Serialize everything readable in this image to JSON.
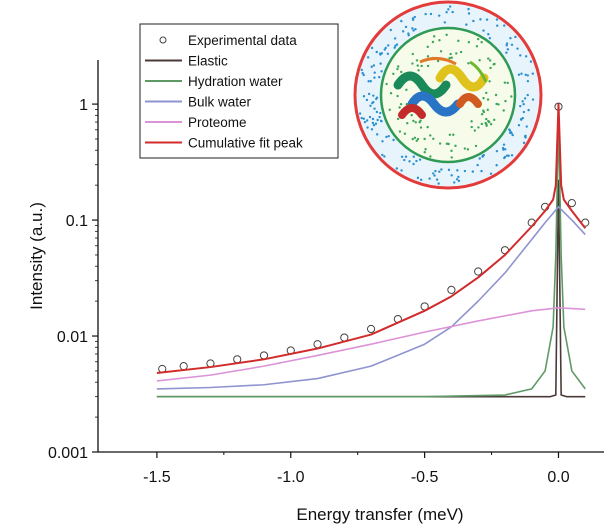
{
  "chart_data": {
    "type": "line",
    "xlabel": "Energy transfer (meV)",
    "ylabel": "Intensity (a.u.)",
    "xlim": [
      -1.72,
      0.17
    ],
    "ylim": [
      0.001,
      2.4
    ],
    "y_scale": "log",
    "x_ticks": [
      -1.5,
      -1.0,
      -0.5,
      0.0
    ],
    "x_tick_labels": [
      "-1.5",
      "-1.0",
      "-0.5",
      "0.0"
    ],
    "y_ticks": [
      0.001,
      0.01,
      0.1,
      1
    ],
    "y_tick_labels": [
      "0.001",
      "0.01",
      "0.1",
      "1"
    ],
    "grid": false,
    "legend_position": "top-left",
    "legend": [
      "Experimental data",
      "Elastic",
      "Hydration water",
      "Bulk water",
      "Proteome",
      "Cumulative fit peak"
    ],
    "colors": {
      "experimental": "#444444",
      "elastic": "#4a3b38",
      "hydration": "#5f9a66",
      "bulk": "#8f93d0",
      "proteome": "#dc93d8",
      "cumulative": "#d12b2b"
    },
    "series": [
      {
        "name": "Experimental data",
        "style": "open-circles",
        "x": [
          -1.48,
          -1.4,
          -1.3,
          -1.2,
          -1.1,
          -1.0,
          -0.9,
          -0.8,
          -0.7,
          -0.6,
          -0.5,
          -0.4,
          -0.3,
          -0.2,
          -0.1,
          -0.05,
          0.0,
          0.05,
          0.1
        ],
        "y": [
          0.0052,
          0.0055,
          0.0058,
          0.0063,
          0.0068,
          0.0075,
          0.0085,
          0.0097,
          0.0115,
          0.014,
          0.018,
          0.025,
          0.036,
          0.055,
          0.095,
          0.13,
          0.95,
          0.14,
          0.095
        ]
      },
      {
        "name": "Elastic",
        "x": [
          -1.5,
          -0.1,
          -0.03,
          -0.01,
          0.0,
          0.01,
          0.03,
          0.1
        ],
        "y": [
          0.003,
          0.003,
          0.003,
          0.0031,
          0.22,
          0.0031,
          0.003,
          0.003
        ]
      },
      {
        "name": "Hydration water",
        "x": [
          -1.5,
          -0.5,
          -0.2,
          -0.1,
          -0.05,
          -0.02,
          -0.01,
          0.0,
          0.01,
          0.02,
          0.05,
          0.1
        ],
        "y": [
          0.003,
          0.003,
          0.0031,
          0.0035,
          0.005,
          0.012,
          0.05,
          0.72,
          0.05,
          0.012,
          0.005,
          0.0035
        ]
      },
      {
        "name": "Bulk water",
        "x": [
          -1.5,
          -1.3,
          -1.1,
          -0.9,
          -0.7,
          -0.5,
          -0.4,
          -0.3,
          -0.2,
          -0.1,
          -0.05,
          0.0,
          0.05,
          0.1
        ],
        "y": [
          0.0035,
          0.0036,
          0.0038,
          0.0043,
          0.0055,
          0.0085,
          0.012,
          0.02,
          0.035,
          0.068,
          0.095,
          0.13,
          0.1,
          0.075
        ]
      },
      {
        "name": "Proteome",
        "x": [
          -1.5,
          -1.3,
          -1.1,
          -0.9,
          -0.7,
          -0.5,
          -0.3,
          -0.1,
          0.0,
          0.1
        ],
        "y": [
          0.0041,
          0.0046,
          0.0055,
          0.0068,
          0.0085,
          0.0108,
          0.0135,
          0.0165,
          0.0175,
          0.017
        ]
      },
      {
        "name": "Cumulative fit peak",
        "x": [
          -1.5,
          -1.3,
          -1.1,
          -0.9,
          -0.7,
          -0.5,
          -0.4,
          -0.3,
          -0.2,
          -0.1,
          -0.05,
          -0.02,
          -0.01,
          0.0,
          0.01,
          0.02,
          0.05,
          0.1
        ],
        "y": [
          0.0048,
          0.0054,
          0.0063,
          0.0078,
          0.0103,
          0.0165,
          0.022,
          0.032,
          0.05,
          0.088,
          0.12,
          0.15,
          0.2,
          1.0,
          0.2,
          0.15,
          0.12,
          0.085
        ]
      }
    ]
  }
}
